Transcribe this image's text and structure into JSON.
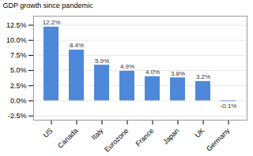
{
  "chart_data": {
    "type": "bar",
    "categories": [
      "US",
      "Canada",
      "Italy",
      "Eurozone",
      "France",
      "Japan",
      "UK",
      "Germany"
    ],
    "values": [
      12.2,
      8.4,
      5.9,
      4.9,
      4.0,
      3.8,
      3.2,
      -0.1
    ],
    "value_labels": [
      "12.2%",
      "8.4%",
      "5.9%",
      "4.9%",
      "4.0%",
      "3.8%",
      "3.2%",
      "-0.1%"
    ],
    "color": "#4d88d9",
    "ylabel": "GDP growth since pandemic",
    "ylim": [
      -3.2,
      14.0
    ],
    "yticks": [
      {
        "value": -2.5,
        "label": "-2.5%"
      },
      {
        "value": 0.0,
        "label": "0.0%"
      },
      {
        "value": 2.5,
        "label": "2.5%"
      },
      {
        "value": 5.0,
        "label": "5.0%"
      },
      {
        "value": 7.5,
        "label": "7.5%"
      },
      {
        "value": 10.0,
        "label": "10.0%"
      },
      {
        "value": 12.5,
        "label": "12.5%"
      }
    ],
    "grid": true,
    "data_labels": true
  }
}
